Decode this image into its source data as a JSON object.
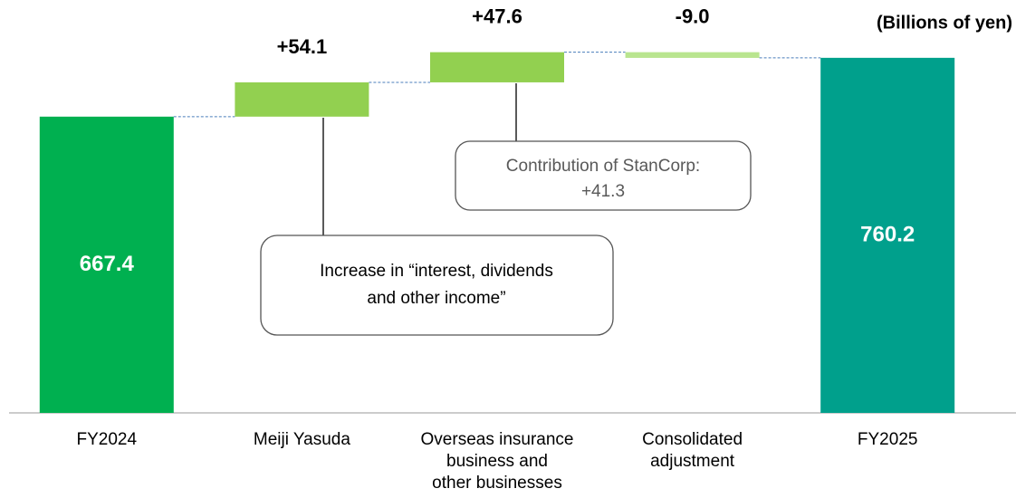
{
  "chart_data": {
    "type": "waterfall",
    "unit_label": "(Billions of yen)",
    "categories": [
      "FY2024",
      "Meiji Yasuda",
      "Overseas insurance\nbusiness and\nother businesses",
      "Consolidated\nadjustment",
      "FY2025"
    ],
    "measures": [
      "absolute",
      "relative",
      "relative",
      "relative",
      "absolute"
    ],
    "values": [
      667.4,
      54.1,
      47.6,
      -9.0,
      760.2
    ],
    "value_labels": [
      "667.4",
      "+54.1",
      "+47.6",
      "-9.0",
      "760.2"
    ],
    "colors": [
      "#00b050",
      "#92d050",
      "#92d050",
      "#b9e58f",
      "#00a08c"
    ],
    "ylim": [
      200,
      800
    ],
    "annotations": [
      {
        "lines": [
          "Increase in “interest, dividends",
          "and other income”"
        ]
      },
      {
        "lines": [
          "Contribution of StanCorp:",
          "+41.3"
        ]
      }
    ]
  }
}
